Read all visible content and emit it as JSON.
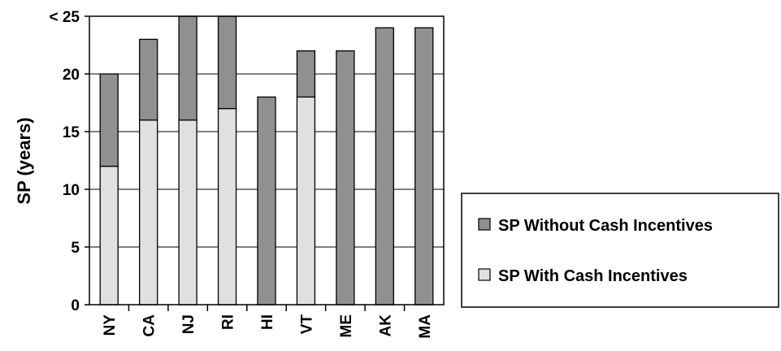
{
  "chart_data": {
    "type": "bar",
    "stacked": true,
    "categories": [
      "NY",
      "CA",
      "NJ",
      "RI",
      "HI",
      "VT",
      "ME",
      "AK",
      "MA"
    ],
    "series": [
      {
        "name": "SP With Cash Incentives",
        "values": [
          12,
          16,
          16,
          17,
          0,
          18,
          0,
          0,
          0
        ],
        "color": "#e0e0e0"
      },
      {
        "name": "SP Without Cash Incentives",
        "values": [
          8,
          7,
          9,
          8,
          18,
          4,
          22,
          24,
          24
        ],
        "color": "#909090"
      }
    ],
    "ylabel": "SP (years)",
    "ylim": [
      0,
      25
    ],
    "yticks": [
      "0",
      "5",
      "10",
      "15",
      "20",
      "< 25"
    ],
    "grid": true,
    "legend": {
      "position": "right",
      "order": [
        "SP Without Cash Incentives",
        "SP With Cash Incentives"
      ]
    }
  }
}
